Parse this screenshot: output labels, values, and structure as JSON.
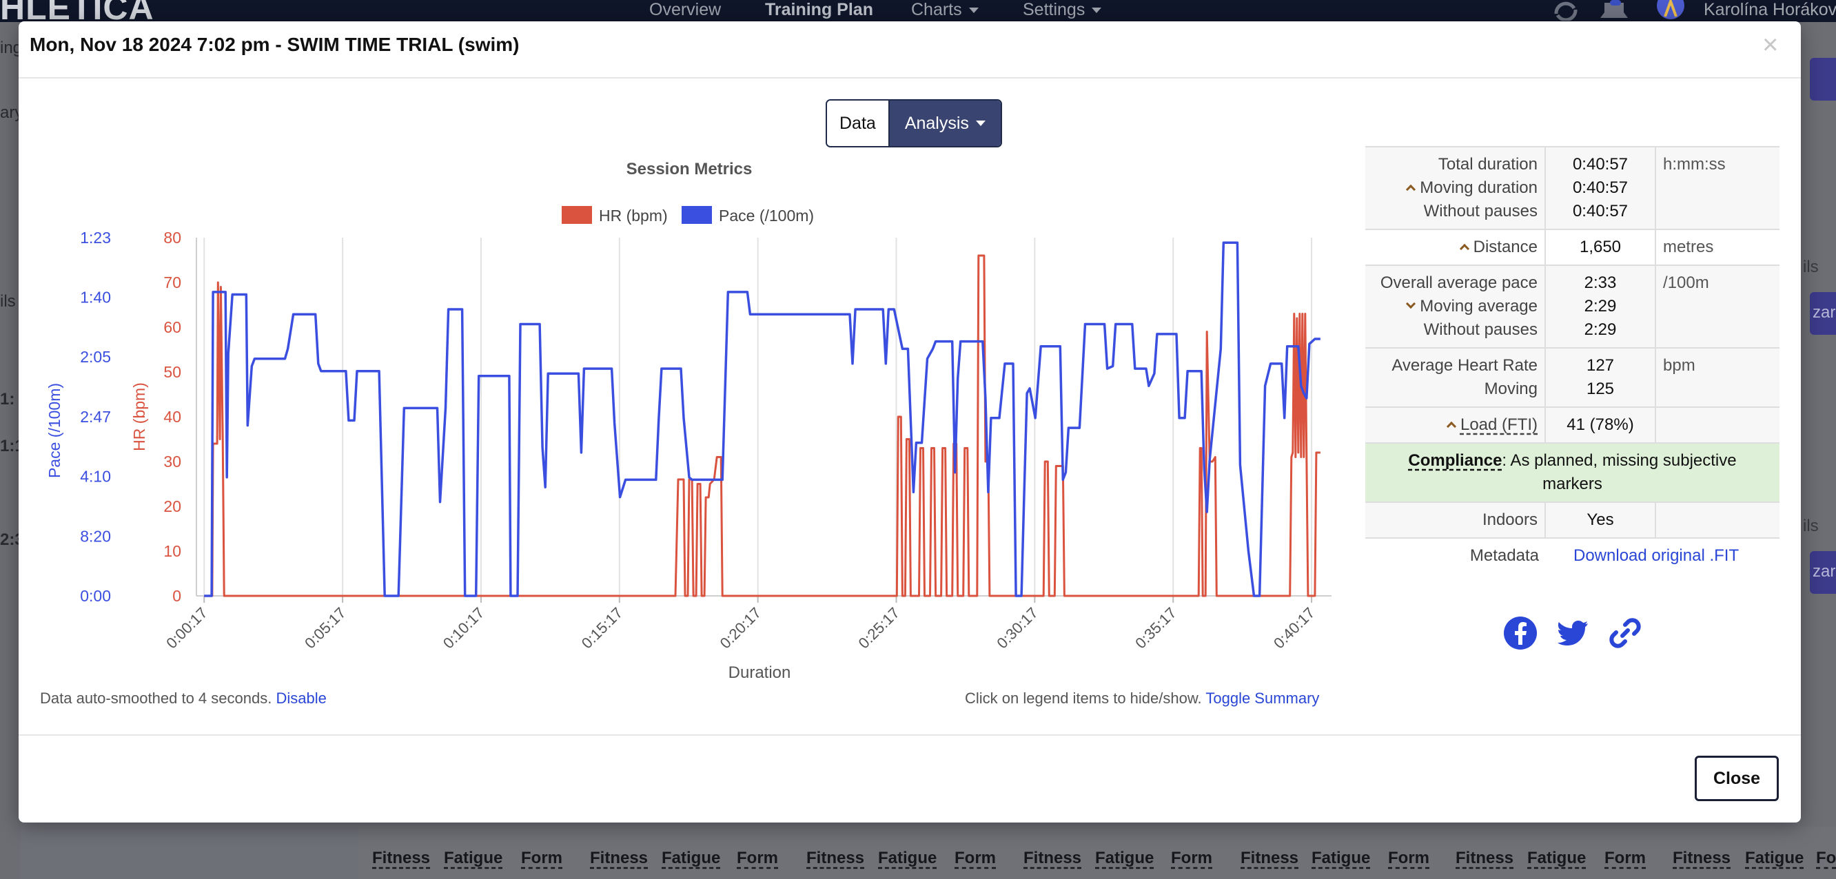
{
  "app": {
    "brand": "HLETICA",
    "nav": [
      {
        "label": "Overview"
      },
      {
        "label": "Training Plan"
      },
      {
        "label": "Charts"
      },
      {
        "label": "Settings"
      }
    ],
    "user_name": "Karolína Horákov",
    "bg_left_fragments": [
      "ing",
      "ary",
      "ils",
      "1:",
      "1:1",
      "2:3"
    ],
    "bg_right_fragments": [
      "ils",
      "zard",
      "ils",
      "zard"
    ],
    "bottom_headers": [
      "Fitness",
      "Fatigue",
      "Form",
      "Fitness",
      "Fatigue",
      "Form",
      "Fitness",
      "Fatigue",
      "Form",
      "Fitness",
      "Fatigue",
      "Form",
      "Fitness",
      "Fatigue",
      "Form",
      "Fitness",
      "Fatigue",
      "Form",
      "Fitness",
      "Fatigue",
      "Fo"
    ]
  },
  "modal": {
    "title": "Mon, Nov 18 2024 7:02 pm - SWIM TIME TRIAL (swim)",
    "close_icon": "×",
    "tabs": {
      "data": "Data",
      "analysis": "Analysis"
    },
    "footnote_left": "Data auto-smoothed to 4 seconds.",
    "footnote_left_link": "Disable",
    "footnote_right": "Click on legend items to hide/show.",
    "footnote_right_link": "Toggle Summary",
    "close_button": "Close"
  },
  "summary": {
    "rows": [
      {
        "labels": [
          "Total duration",
          "Moving duration",
          "Without pauses"
        ],
        "values": [
          "0:40:57",
          "0:40:57",
          "0:40:57"
        ],
        "unit": "h:mm:ss"
      },
      {
        "labels": [
          "Distance"
        ],
        "values": [
          "1,650"
        ],
        "unit": "metres"
      },
      {
        "labels": [
          "Overall average pace",
          "Moving average",
          "Without pauses"
        ],
        "values": [
          "2:33",
          "2:29",
          "2:29"
        ],
        "unit": "/100m"
      },
      {
        "labels": [
          "Average Heart Rate",
          "Moving"
        ],
        "values": [
          "127",
          "125"
        ],
        "unit": "bpm"
      },
      {
        "labels": [
          "Load (FTI)"
        ],
        "values": [
          "41 (78%)"
        ],
        "unit": ""
      }
    ],
    "compliance_label": "Compliance",
    "compliance_text": ": As planned, missing subjective markers",
    "indoors_label": "Indoors",
    "indoors_value": "Yes",
    "metadata_label": "Metadata",
    "metadata_link": "Download original .FIT",
    "social_icons": [
      "facebook-icon",
      "twitter-icon",
      "link-icon"
    ]
  },
  "chart_data": {
    "type": "line",
    "title": "Session Metrics",
    "xlabel": "Duration",
    "x_ticks": [
      "0:00:17",
      "0:05:17",
      "0:10:17",
      "0:15:17",
      "0:20:17",
      "0:25:17",
      "0:30:17",
      "0:35:17",
      "0:40:17"
    ],
    "legend_position": "top-center",
    "grid": "vertical",
    "axes": [
      {
        "id": "hr",
        "label": "HR (bpm)",
        "color": "#d9533f",
        "ticks": [
          "0",
          "10",
          "20",
          "30",
          "40",
          "50",
          "60",
          "70",
          "80"
        ],
        "range": [
          0,
          80
        ]
      },
      {
        "id": "pace",
        "label": "Pace (/100m)",
        "color": "#3a4fe0",
        "ticks": [
          "0:00",
          "8:20",
          "4:10",
          "2:47",
          "2:05",
          "1:40",
          "1:23"
        ],
        "scale": "reciprocal"
      }
    ],
    "series": [
      {
        "name": "HR (bpm)",
        "axis": "hr",
        "color": "#d9533f",
        "points_min_hr": [
          [
            0.28,
            0
          ],
          [
            0.57,
            0
          ],
          [
            0.6,
            34
          ],
          [
            0.75,
            34
          ],
          [
            0.78,
            70
          ],
          [
            0.85,
            35
          ],
          [
            0.88,
            69
          ],
          [
            0.95,
            35
          ],
          [
            1.0,
            0
          ],
          [
            1.5,
            0
          ],
          [
            2.5,
            0
          ],
          [
            3.5,
            0
          ],
          [
            4.5,
            0
          ],
          [
            5.5,
            0
          ],
          [
            6.5,
            0
          ],
          [
            7.5,
            0
          ],
          [
            8.5,
            0
          ],
          [
            9.5,
            0
          ],
          [
            10.5,
            0
          ],
          [
            11.5,
            0
          ],
          [
            12.5,
            0
          ],
          [
            13.5,
            0
          ],
          [
            14.5,
            0
          ],
          [
            15.5,
            0
          ],
          [
            16.5,
            0
          ],
          [
            17.3,
            0
          ],
          [
            17.4,
            26
          ],
          [
            17.6,
            26
          ],
          [
            17.65,
            0
          ],
          [
            17.75,
            0
          ],
          [
            17.8,
            26
          ],
          [
            17.9,
            26
          ],
          [
            17.95,
            0
          ],
          [
            18.05,
            0
          ],
          [
            18.1,
            25
          ],
          [
            18.2,
            25
          ],
          [
            18.25,
            0
          ],
          [
            18.35,
            0
          ],
          [
            18.4,
            22
          ],
          [
            18.5,
            22
          ],
          [
            18.55,
            25
          ],
          [
            18.7,
            26
          ],
          [
            18.8,
            31
          ],
          [
            18.95,
            31
          ],
          [
            19.0,
            0
          ],
          [
            20.0,
            0
          ],
          [
            21.0,
            0
          ],
          [
            22.0,
            0
          ],
          [
            23.0,
            0
          ],
          [
            24.0,
            0
          ],
          [
            25.0,
            0
          ],
          [
            25.3,
            0
          ],
          [
            25.35,
            40
          ],
          [
            25.45,
            40
          ],
          [
            25.5,
            0
          ],
          [
            25.6,
            0
          ],
          [
            25.65,
            35
          ],
          [
            25.75,
            35
          ],
          [
            25.8,
            0
          ],
          [
            26.1,
            0
          ],
          [
            26.15,
            33
          ],
          [
            26.25,
            33
          ],
          [
            26.3,
            0
          ],
          [
            26.5,
            0
          ],
          [
            26.55,
            33
          ],
          [
            26.65,
            33
          ],
          [
            26.7,
            0
          ],
          [
            26.9,
            0
          ],
          [
            26.95,
            33
          ],
          [
            27.05,
            33
          ],
          [
            27.1,
            0
          ],
          [
            27.3,
            0
          ],
          [
            27.35,
            34
          ],
          [
            27.45,
            34
          ],
          [
            27.5,
            0
          ],
          [
            27.7,
            0
          ],
          [
            27.75,
            33
          ],
          [
            27.85,
            33
          ],
          [
            27.9,
            0
          ],
          [
            28.0,
            0
          ],
          [
            28.2,
            0
          ],
          [
            28.25,
            76
          ],
          [
            28.45,
            76
          ],
          [
            28.5,
            30
          ],
          [
            28.6,
            30
          ],
          [
            28.65,
            0
          ],
          [
            29.5,
            0
          ],
          [
            30.0,
            0
          ],
          [
            30.5,
            0
          ],
          [
            30.6,
            0
          ],
          [
            30.65,
            30
          ],
          [
            30.75,
            30
          ],
          [
            30.8,
            0
          ],
          [
            31.0,
            0
          ],
          [
            31.05,
            29
          ],
          [
            31.3,
            29
          ],
          [
            31.35,
            0
          ],
          [
            32.0,
            0
          ],
          [
            33.0,
            0
          ],
          [
            34.0,
            0
          ],
          [
            35.0,
            0
          ],
          [
            36.2,
            0
          ],
          [
            36.25,
            33
          ],
          [
            36.3,
            33
          ],
          [
            36.35,
            0
          ],
          [
            36.45,
            0
          ],
          [
            36.5,
            59
          ],
          [
            36.6,
            30
          ],
          [
            36.7,
            30
          ],
          [
            36.8,
            31
          ],
          [
            36.85,
            0
          ],
          [
            37.0,
            0
          ],
          [
            38.0,
            0
          ],
          [
            39.0,
            0
          ],
          [
            39.5,
            0
          ],
          [
            39.55,
            31
          ],
          [
            39.6,
            32
          ],
          [
            39.65,
            63
          ],
          [
            39.7,
            31
          ],
          [
            39.75,
            62
          ],
          [
            39.8,
            32
          ],
          [
            39.85,
            63
          ],
          [
            39.9,
            31
          ],
          [
            39.95,
            63
          ],
          [
            40.0,
            31
          ],
          [
            40.05,
            63
          ],
          [
            40.1,
            31
          ],
          [
            40.15,
            0
          ],
          [
            40.4,
            0
          ],
          [
            40.45,
            32
          ],
          [
            40.6,
            32
          ]
        ]
      },
      {
        "name": "Pace (/100m)",
        "axis": "pace",
        "color": "#3a4fe0",
        "points_min_speed": [
          [
            0.28,
            0
          ],
          [
            0.55,
            0
          ],
          [
            0.6,
            1.23
          ],
          [
            1.05,
            1.23
          ],
          [
            1.1,
            0.48
          ],
          [
            1.15,
            0.98
          ],
          [
            1.3,
            1.22
          ],
          [
            1.8,
            1.22
          ],
          [
            1.85,
            0.69
          ],
          [
            2.0,
            0.93
          ],
          [
            2.1,
            0.96
          ],
          [
            3.2,
            0.96
          ],
          [
            3.3,
            1.0
          ],
          [
            3.5,
            1.14
          ],
          [
            4.3,
            1.14
          ],
          [
            4.4,
            0.94
          ],
          [
            4.5,
            0.91
          ],
          [
            5.4,
            0.91
          ],
          [
            5.5,
            0.71
          ],
          [
            5.7,
            0.71
          ],
          [
            5.8,
            0.91
          ],
          [
            6.6,
            0.91
          ],
          [
            6.8,
            0.0
          ],
          [
            7.0,
            0.0
          ],
          [
            7.3,
            0.0
          ],
          [
            7.5,
            0.76
          ],
          [
            8.7,
            0.76
          ],
          [
            8.8,
            0.38
          ],
          [
            9.0,
            0.76
          ],
          [
            9.1,
            1.16
          ],
          [
            9.6,
            1.16
          ],
          [
            9.7,
            0.0
          ],
          [
            10.1,
            0.0
          ],
          [
            10.2,
            0.89
          ],
          [
            11.3,
            0.89
          ],
          [
            11.35,
            0.0
          ],
          [
            11.6,
            0.0
          ],
          [
            11.7,
            1.1
          ],
          [
            12.4,
            1.1
          ],
          [
            12.5,
            0.6
          ],
          [
            12.6,
            0.44
          ],
          [
            12.7,
            0.9
          ],
          [
            13.8,
            0.9
          ],
          [
            13.9,
            0.58
          ],
          [
            14.0,
            0.92
          ],
          [
            14.2,
            0.92
          ],
          [
            14.6,
            0.92
          ],
          [
            15.0,
            0.92
          ],
          [
            15.1,
            0.7
          ],
          [
            15.3,
            0.4
          ],
          [
            15.5,
            0.47
          ],
          [
            15.6,
            0.47
          ],
          [
            16.6,
            0.47
          ],
          [
            16.7,
            0.72
          ],
          [
            16.8,
            0.92
          ],
          [
            17.5,
            0.92
          ],
          [
            17.6,
            0.72
          ],
          [
            17.8,
            0.48
          ],
          [
            17.9,
            0.47
          ],
          [
            19.0,
            0.47
          ],
          [
            19.2,
            1.23
          ],
          [
            19.9,
            1.23
          ],
          [
            20.0,
            1.14
          ],
          [
            20.5,
            1.14
          ],
          [
            21.5,
            1.14
          ],
          [
            23.6,
            1.14
          ],
          [
            23.7,
            0.94
          ],
          [
            23.8,
            1.16
          ],
          [
            24.0,
            1.16
          ],
          [
            24.8,
            1.16
          ],
          [
            24.9,
            0.94
          ],
          [
            25.0,
            1.16
          ],
          [
            25.2,
            1.16
          ],
          [
            25.5,
            1.0
          ],
          [
            25.7,
            1.0
          ],
          [
            25.9,
            0.42
          ],
          [
            26.0,
            0.62
          ],
          [
            26.2,
            0.62
          ],
          [
            26.4,
            0.96
          ],
          [
            26.6,
            1.0
          ],
          [
            26.7,
            1.03
          ],
          [
            27.3,
            1.03
          ],
          [
            27.4,
            0.5
          ],
          [
            27.5,
            0.88
          ],
          [
            27.6,
            1.03
          ],
          [
            28.4,
            1.03
          ],
          [
            28.5,
            0.8
          ],
          [
            28.6,
            0.42
          ],
          [
            28.7,
            0.72
          ],
          [
            29.0,
            0.72
          ],
          [
            29.2,
            0.94
          ],
          [
            29.5,
            0.94
          ],
          [
            29.6,
            0.0
          ],
          [
            29.8,
            0.0
          ],
          [
            29.9,
            0.42
          ],
          [
            30.0,
            0.82
          ],
          [
            30.1,
            0.84
          ],
          [
            30.3,
            0.72
          ],
          [
            30.5,
            1.01
          ],
          [
            31.2,
            1.01
          ],
          [
            31.3,
            0.47
          ],
          [
            31.4,
            0.5
          ],
          [
            31.5,
            0.68
          ],
          [
            31.9,
            0.68
          ],
          [
            32.1,
            1.1
          ],
          [
            32.8,
            1.1
          ],
          [
            32.9,
            0.92
          ],
          [
            33.1,
            0.93
          ],
          [
            33.2,
            1.1
          ],
          [
            33.8,
            1.1
          ],
          [
            33.9,
            0.92
          ],
          [
            34.3,
            0.92
          ],
          [
            34.4,
            0.85
          ],
          [
            34.6,
            0.9
          ],
          [
            34.7,
            1.06
          ],
          [
            35.4,
            1.06
          ],
          [
            35.5,
            0.72
          ],
          [
            35.7,
            0.72
          ],
          [
            35.8,
            0.91
          ],
          [
            36.3,
            0.91
          ],
          [
            36.4,
            0.52
          ],
          [
            36.5,
            0.34
          ],
          [
            36.6,
            0.55
          ],
          [
            37.0,
            1.0
          ],
          [
            37.1,
            1.43
          ],
          [
            37.6,
            1.43
          ],
          [
            37.7,
            0.53
          ],
          [
            38.0,
            0.18
          ],
          [
            38.2,
            0.0
          ],
          [
            38.4,
            0.0
          ],
          [
            38.6,
            0.85
          ],
          [
            38.8,
            0.94
          ],
          [
            38.9,
            0.94
          ],
          [
            39.2,
            0.94
          ],
          [
            39.3,
            0.72
          ],
          [
            39.4,
            1.01
          ],
          [
            39.8,
            1.01
          ],
          [
            39.9,
            0.85
          ],
          [
            40.0,
            0.82
          ],
          [
            40.1,
            0.8
          ],
          [
            40.2,
            1.02
          ],
          [
            40.4,
            1.04
          ],
          [
            40.6,
            1.04
          ]
        ]
      }
    ]
  }
}
